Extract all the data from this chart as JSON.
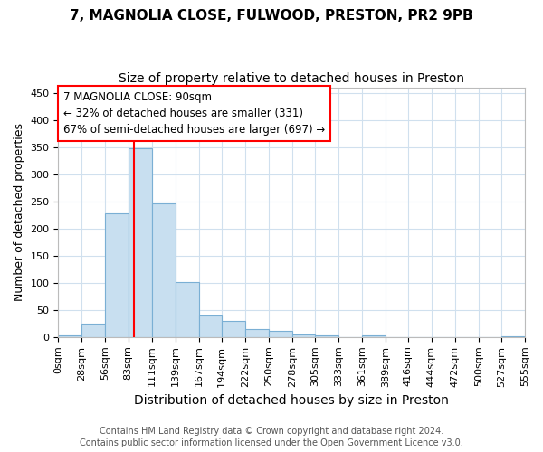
{
  "title_line1": "7, MAGNOLIA CLOSE, FULWOOD, PRESTON, PR2 9PB",
  "title_line2": "Size of property relative to detached houses in Preston",
  "xlabel": "Distribution of detached houses by size in Preston",
  "ylabel": "Number of detached properties",
  "bar_color": "#c8dff0",
  "bar_edge_color": "#7aafd4",
  "vline_x": 90,
  "vline_color": "red",
  "annotation_title": "7 MAGNOLIA CLOSE: 90sqm",
  "annotation_line1": "← 32% of detached houses are smaller (331)",
  "annotation_line2": "67% of semi-detached houses are larger (697) →",
  "bin_edges": [
    0,
    28,
    56,
    83,
    111,
    139,
    167,
    194,
    222,
    250,
    278,
    305,
    333,
    361,
    389,
    416,
    444,
    472,
    500,
    527,
    555
  ],
  "bin_counts": [
    3,
    25,
    228,
    348,
    246,
    102,
    40,
    30,
    15,
    12,
    5,
    3,
    0,
    3,
    0,
    0,
    0,
    0,
    0,
    2
  ],
  "ylim": [
    0,
    460
  ],
  "yticks": [
    0,
    50,
    100,
    150,
    200,
    250,
    300,
    350,
    400,
    450
  ],
  "footer_line1": "Contains HM Land Registry data © Crown copyright and database right 2024.",
  "footer_line2": "Contains public sector information licensed under the Open Government Licence v3.0.",
  "bg_color": "#ffffff",
  "grid_color": "#d0e0ee",
  "title_fontsize": 11,
  "subtitle_fontsize": 10,
  "xlabel_fontsize": 10,
  "ylabel_fontsize": 9,
  "tick_fontsize": 8,
  "footer_fontsize": 7,
  "ann_fontsize": 8.5
}
